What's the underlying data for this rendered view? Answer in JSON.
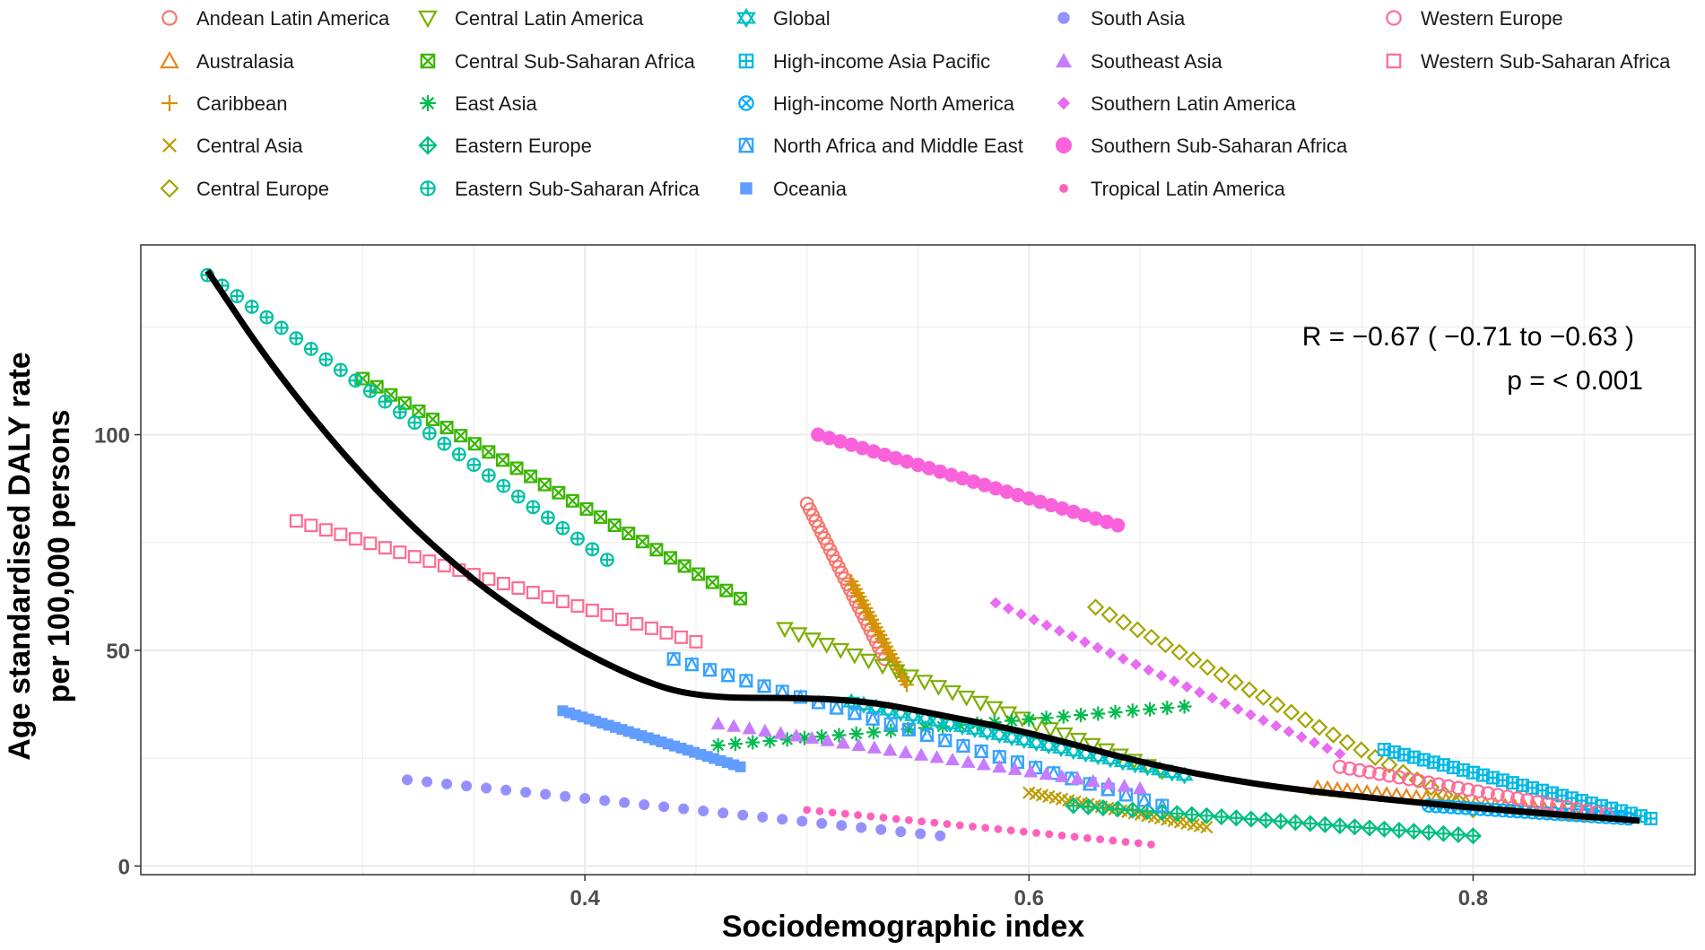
{
  "chart_data": {
    "type": "scatter",
    "xlabel": "Sociodemographic index",
    "ylabel_line1": "Age standardised DALY rate",
    "ylabel_line2": "per 100,000 persons",
    "xlim": [
      0.2,
      0.9
    ],
    "ylim": [
      -2,
      144
    ],
    "x_ticks": [
      0.4,
      0.6,
      0.8
    ],
    "x_tick_labels": [
      "0.4",
      "0.6",
      "0.8"
    ],
    "y_ticks": [
      0,
      50,
      100
    ],
    "y_tick_labels": [
      "0",
      "50",
      "100"
    ],
    "grid": true,
    "legend_position": "top",
    "annotation_r": "R = −0.67 ( −0.71 to −0.63 )",
    "annotation_p": "p = < 0.001",
    "smooth_line": {
      "x": [
        0.23,
        0.26,
        0.3,
        0.34,
        0.38,
        0.42,
        0.45,
        0.5,
        0.53,
        0.56,
        0.6,
        0.65,
        0.7,
        0.75,
        0.8,
        0.85,
        0.875
      ],
      "y": [
        138,
        115,
        90,
        70,
        55,
        44,
        39,
        39,
        38,
        35,
        31,
        24,
        19,
        16,
        13.5,
        11.5,
        10.5
      ]
    },
    "series": [
      {
        "name": "Andean Latin America",
        "color": "#F8766D",
        "marker": "circle-open",
        "x": [
          0.5,
          0.535
        ],
        "y": [
          84,
          48
        ]
      },
      {
        "name": "Australasia",
        "color": "#E7861B",
        "marker": "triangle-open",
        "x": [
          0.73,
          0.85
        ],
        "y": [
          18,
          12
        ]
      },
      {
        "name": "Caribbean",
        "color": "#D39200",
        "marker": "plus",
        "x": [
          0.52,
          0.545
        ],
        "y": [
          66,
          42
        ]
      },
      {
        "name": "Central Asia",
        "color": "#BE9C00",
        "marker": "x",
        "x": [
          0.6,
          0.68
        ],
        "y": [
          17,
          9
        ]
      },
      {
        "name": "Central Europe",
        "color": "#A3A500",
        "marker": "diamond-open",
        "x": [
          0.63,
          0.8
        ],
        "y": [
          60,
          13
        ]
      },
      {
        "name": "Central Latin America",
        "color": "#7CAE00",
        "marker": "triangle-down-open",
        "x": [
          0.49,
          0.66
        ],
        "y": [
          55,
          22
        ]
      },
      {
        "name": "Central Sub-Saharan Africa",
        "color": "#39B600",
        "marker": "box-x",
        "x": [
          0.3,
          0.47
        ],
        "y": [
          113,
          62
        ]
      },
      {
        "name": "East Asia",
        "color": "#00BB4E",
        "marker": "asterisk",
        "x": [
          0.46,
          0.67
        ],
        "y": [
          28,
          37
        ]
      },
      {
        "name": "Eastern Europe",
        "color": "#00BF7D",
        "marker": "diamond-plus",
        "x": [
          0.62,
          0.8
        ],
        "y": [
          14,
          7
        ]
      },
      {
        "name": "Eastern Sub-Saharan Africa",
        "color": "#00C1A3",
        "marker": "circle-plus",
        "x": [
          0.23,
          0.41
        ],
        "y": [
          137,
          71
        ]
      },
      {
        "name": "Global",
        "color": "#00BFC4",
        "marker": "star-david",
        "x": [
          0.52,
          0.67
        ],
        "y": [
          38,
          21
        ]
      },
      {
        "name": "High-income Asia Pacific",
        "color": "#00B8E5",
        "marker": "box-plus",
        "x": [
          0.76,
          0.88
        ],
        "y": [
          27,
          11
        ]
      },
      {
        "name": "High-income North America",
        "color": "#00ACFC",
        "marker": "circle-x",
        "x": [
          0.78,
          0.87
        ],
        "y": [
          14,
          11
        ]
      },
      {
        "name": "North Africa and Middle East",
        "color": "#35A2FF",
        "marker": "triangle-box",
        "x": [
          0.44,
          0.66
        ],
        "y": [
          48,
          14
        ]
      },
      {
        "name": "Oceania",
        "color": "#619CFF",
        "marker": "square",
        "x": [
          0.39,
          0.47
        ],
        "y": [
          36,
          23
        ]
      },
      {
        "name": "South Asia",
        "color": "#9590FF",
        "marker": "circle",
        "x": [
          0.32,
          0.56
        ],
        "y": [
          20,
          7
        ]
      },
      {
        "name": "Southeast Asia",
        "color": "#C77CFF",
        "marker": "triangle",
        "x": [
          0.46,
          0.65
        ],
        "y": [
          33,
          18
        ]
      },
      {
        "name": "Southern Latin America",
        "color": "#E76BF3",
        "marker": "diamond",
        "x": [
          0.585,
          0.74
        ],
        "y": [
          61,
          26
        ]
      },
      {
        "name": "Southern Sub-Saharan Africa",
        "color": "#FA62DB",
        "marker": "circle-big",
        "x": [
          0.505,
          0.64
        ],
        "y": [
          100,
          79
        ]
      },
      {
        "name": "Tropical Latin America",
        "color": "#FF62BC",
        "marker": "circle-small",
        "x": [
          0.5,
          0.655
        ],
        "y": [
          13,
          5
        ]
      },
      {
        "name": "Western Europe",
        "color": "#FF6A98",
        "marker": "circle-open",
        "x": [
          0.74,
          0.86
        ],
        "y": [
          23,
          12
        ]
      },
      {
        "name": "Western Sub-Saharan Africa",
        "color": "#FF6C91",
        "marker": "square-open",
        "x": [
          0.27,
          0.45
        ],
        "y": [
          80,
          52
        ]
      }
    ]
  }
}
